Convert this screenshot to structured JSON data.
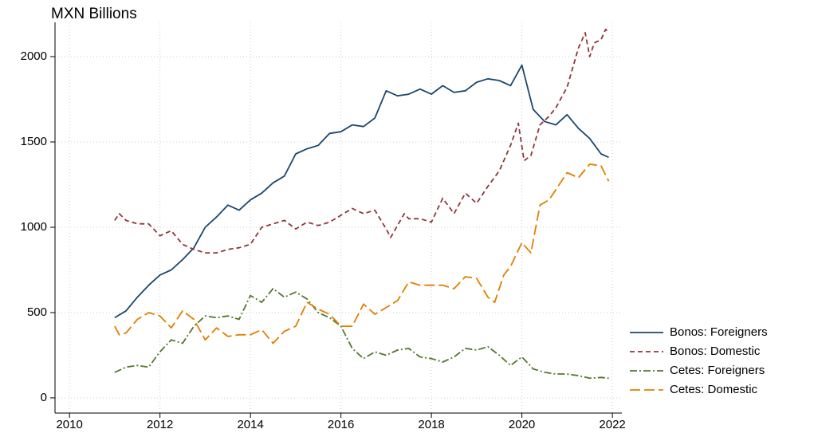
{
  "chart_data": {
    "type": "line",
    "title": "MXN Billions",
    "xlim": [
      2009.68,
      2022.21
    ],
    "ylim": [
      -89,
      2201
    ],
    "xticks": [
      2010,
      2012,
      2014,
      2016,
      2018,
      2020,
      2022
    ],
    "yticks": [
      0,
      500,
      1000,
      1500,
      2000
    ],
    "grid": true,
    "legend": "right",
    "series": [
      {
        "name": "Bonos: Foreigners",
        "color": "#1a476f",
        "style": "solid",
        "x": [
          2011.0,
          2011.25,
          2011.5,
          2011.75,
          2012.0,
          2012.25,
          2012.5,
          2012.75,
          2013.0,
          2013.25,
          2013.5,
          2013.75,
          2014.0,
          2014.25,
          2014.5,
          2014.75,
          2015.0,
          2015.25,
          2015.5,
          2015.75,
          2016.0,
          2016.25,
          2016.5,
          2016.75,
          2017.0,
          2017.25,
          2017.5,
          2017.75,
          2018.0,
          2018.25,
          2018.5,
          2018.75,
          2019.0,
          2019.25,
          2019.5,
          2019.75,
          2020.0,
          2020.25,
          2020.5,
          2020.75,
          2021.0,
          2021.25,
          2021.5,
          2021.75,
          2021.92
        ],
        "values": [
          470,
          510,
          590,
          660,
          720,
          750,
          810,
          880,
          1000,
          1060,
          1130,
          1100,
          1160,
          1200,
          1260,
          1300,
          1430,
          1460,
          1480,
          1550,
          1560,
          1600,
          1590,
          1640,
          1800,
          1770,
          1780,
          1810,
          1780,
          1830,
          1790,
          1800,
          1850,
          1870,
          1860,
          1830,
          1950,
          1690,
          1620,
          1600,
          1660,
          1580,
          1520,
          1430,
          1410
        ]
      },
      {
        "name": "Bonos: Domestic",
        "color": "#90353b",
        "style": "dash",
        "x": [
          2011.0,
          2011.1,
          2011.25,
          2011.5,
          2011.75,
          2012.0,
          2012.25,
          2012.5,
          2012.75,
          2013.0,
          2013.25,
          2013.5,
          2013.75,
          2014.0,
          2014.25,
          2014.5,
          2014.75,
          2015.0,
          2015.25,
          2015.5,
          2015.75,
          2016.0,
          2016.25,
          2016.5,
          2016.75,
          2017.0,
          2017.1,
          2017.4,
          2017.5,
          2017.75,
          2018.0,
          2018.25,
          2018.5,
          2018.75,
          2019.0,
          2019.25,
          2019.5,
          2019.75,
          2019.92,
          2020.05,
          2020.2,
          2020.4,
          2020.6,
          2020.75,
          2021.0,
          2021.25,
          2021.4,
          2021.5,
          2021.6,
          2021.75,
          2021.85,
          2021.92
        ],
        "values": [
          1040,
          1080,
          1040,
          1020,
          1020,
          950,
          980,
          900,
          870,
          850,
          850,
          870,
          880,
          900,
          1000,
          1020,
          1040,
          990,
          1030,
          1010,
          1030,
          1070,
          1110,
          1080,
          1100,
          990,
          940,
          1080,
          1050,
          1050,
          1030,
          1170,
          1080,
          1200,
          1140,
          1240,
          1330,
          1480,
          1610,
          1390,
          1420,
          1600,
          1650,
          1700,
          1820,
          2050,
          2140,
          2000,
          2080,
          2100,
          2160,
          2140
        ]
      },
      {
        "name": "Cetes: Foreigners",
        "color": "#55752f",
        "style": "dash-dot",
        "x": [
          2011.0,
          2011.25,
          2011.5,
          2011.75,
          2012.0,
          2012.25,
          2012.5,
          2012.75,
          2013.0,
          2013.25,
          2013.5,
          2013.75,
          2014.0,
          2014.25,
          2014.5,
          2014.75,
          2015.0,
          2015.25,
          2015.5,
          2015.75,
          2016.0,
          2016.25,
          2016.5,
          2016.75,
          2017.0,
          2017.25,
          2017.5,
          2017.75,
          2018.0,
          2018.25,
          2018.5,
          2018.75,
          2019.0,
          2019.25,
          2019.5,
          2019.75,
          2020.0,
          2020.25,
          2020.5,
          2020.75,
          2021.0,
          2021.25,
          2021.5,
          2021.75,
          2021.92
        ],
        "values": [
          150,
          180,
          190,
          180,
          270,
          340,
          320,
          420,
          480,
          470,
          480,
          460,
          600,
          560,
          640,
          590,
          620,
          580,
          500,
          470,
          420,
          290,
          230,
          270,
          250,
          280,
          290,
          240,
          230,
          210,
          240,
          290,
          280,
          300,
          250,
          190,
          240,
          170,
          150,
          140,
          140,
          130,
          115,
          120,
          115
        ]
      },
      {
        "name": "Cetes: Domestic",
        "color": "#e37e00",
        "style": "long-dash",
        "x": [
          2011.0,
          2011.1,
          2011.25,
          2011.5,
          2011.75,
          2012.0,
          2012.25,
          2012.5,
          2012.75,
          2013.0,
          2013.25,
          2013.5,
          2013.75,
          2014.0,
          2014.25,
          2014.5,
          2014.75,
          2015.0,
          2015.25,
          2015.5,
          2015.75,
          2016.0,
          2016.25,
          2016.5,
          2016.75,
          2017.0,
          2017.25,
          2017.5,
          2017.75,
          2018.0,
          2018.25,
          2018.5,
          2018.75,
          2019.0,
          2019.25,
          2019.4,
          2019.6,
          2019.75,
          2020.0,
          2020.2,
          2020.4,
          2020.6,
          2020.75,
          2021.0,
          2021.25,
          2021.5,
          2021.75,
          2021.92
        ],
        "values": [
          420,
          370,
          380,
          460,
          500,
          480,
          410,
          510,
          460,
          340,
          410,
          360,
          370,
          370,
          400,
          320,
          390,
          420,
          560,
          520,
          490,
          420,
          420,
          550,
          490,
          530,
          570,
          680,
          660,
          660,
          660,
          640,
          710,
          700,
          590,
          560,
          720,
          770,
          910,
          850,
          1130,
          1160,
          1220,
          1320,
          1290,
          1370,
          1360,
          1270
        ]
      }
    ]
  }
}
